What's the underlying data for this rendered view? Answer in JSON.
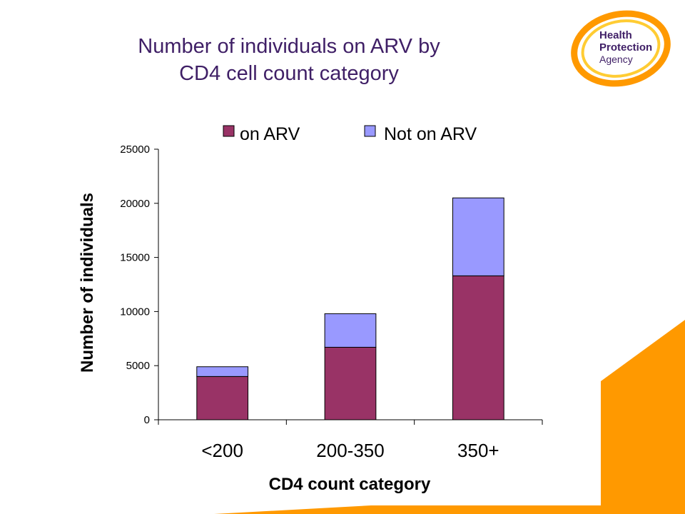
{
  "slide": {
    "title_line1": "Number of individuals on ARV by",
    "title_line2": "CD4 cell count category"
  },
  "logo": {
    "line1": "Health",
    "line2": "Protection",
    "line3": "Agency"
  },
  "colors": {
    "on_arv": "#993366",
    "not_on_arv": "#9999ff",
    "title": "#3f1f66",
    "accent_orange": "#ff9900"
  },
  "chart_data": {
    "type": "bar",
    "stacked": true,
    "categories": [
      "<200",
      "200-350",
      "350+"
    ],
    "series": [
      {
        "name": "on ARV",
        "values": [
          4000,
          6700,
          13300
        ]
      },
      {
        "name": "Not on ARV",
        "values": [
          900,
          3100,
          7200
        ]
      }
    ],
    "title": "",
    "xlabel": "CD4 count category",
    "ylabel": "Number of individuals",
    "ylim": [
      0,
      25000
    ],
    "yticks": [
      0,
      5000,
      10000,
      15000,
      20000,
      25000
    ],
    "grid": false,
    "legend_position": "top"
  }
}
